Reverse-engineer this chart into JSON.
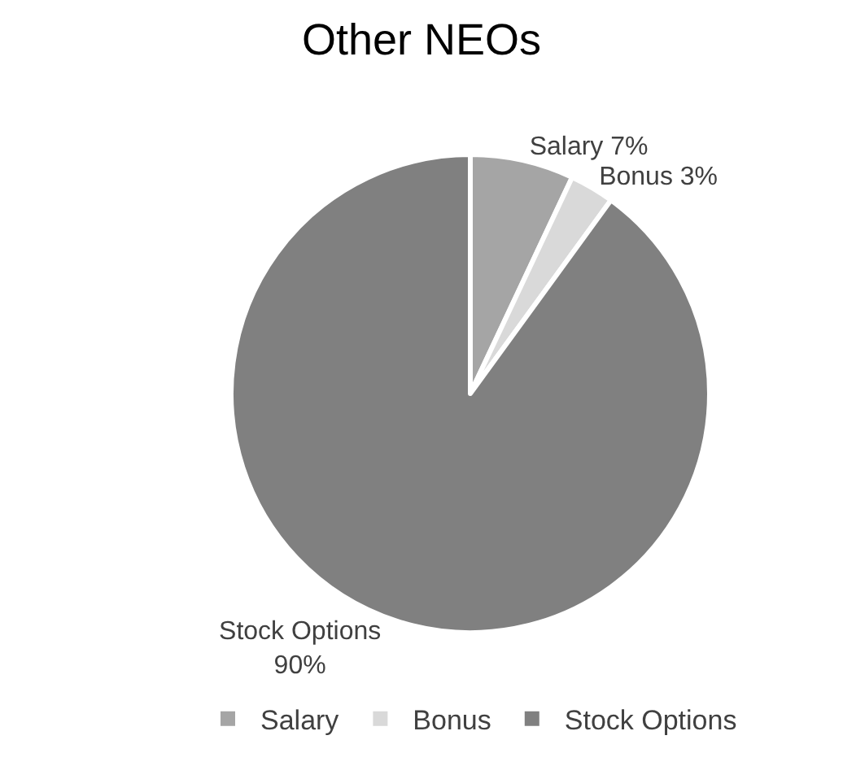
{
  "chart_data": {
    "type": "pie",
    "title": "Other NEOs",
    "categories": [
      "Salary",
      "Bonus",
      "Stock Options"
    ],
    "values": [
      7,
      3,
      90
    ],
    "colors": [
      "#a5a5a5",
      "#d9d9d9",
      "#808080"
    ],
    "value_labels": [
      "Salary 7%",
      "Bonus 3%",
      "Stock Options\n90%"
    ],
    "legend": "bottom"
  }
}
